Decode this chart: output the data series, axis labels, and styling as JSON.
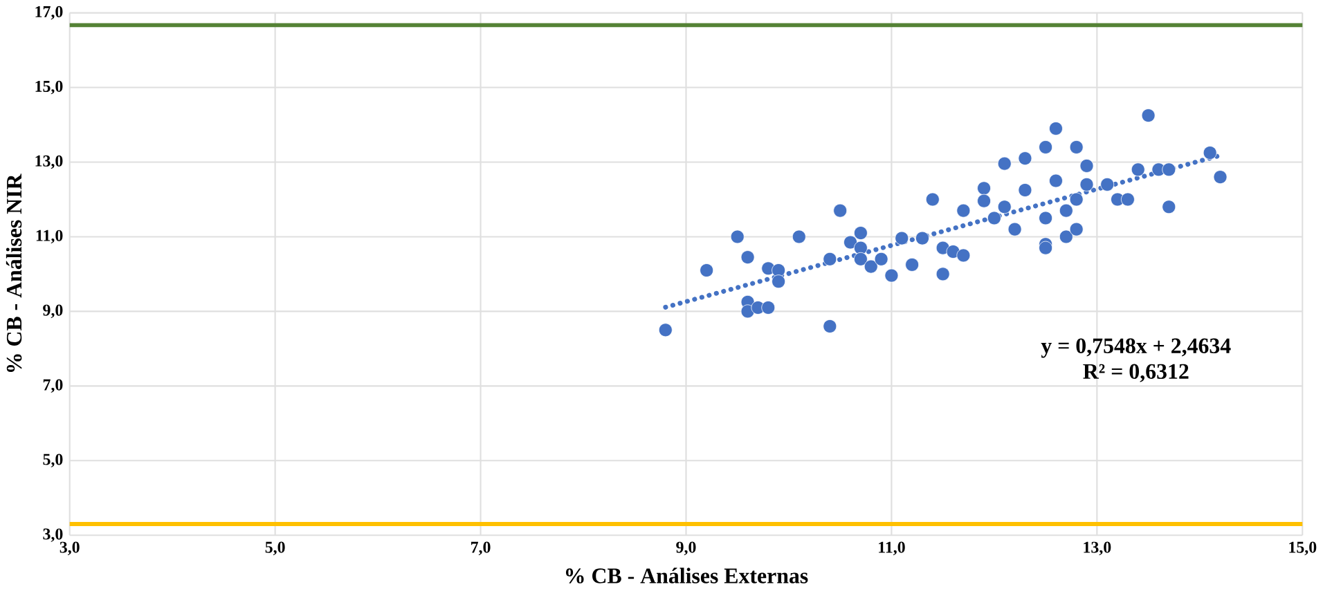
{
  "chart_data": {
    "type": "scatter",
    "xlabel": "% CB - Análises Externas",
    "ylabel": "% CB - Análises NIR",
    "xlim": [
      3,
      15
    ],
    "ylim": [
      3,
      17
    ],
    "xticks": [
      {
        "value": 3,
        "label": "3,0"
      },
      {
        "value": 5,
        "label": "5,0"
      },
      {
        "value": 7,
        "label": "7,0"
      },
      {
        "value": 9,
        "label": "9,0"
      },
      {
        "value": 11,
        "label": "11,0"
      },
      {
        "value": 13,
        "label": "13,0"
      },
      {
        "value": 15,
        "label": "15,0"
      }
    ],
    "yticks": [
      {
        "value": 3,
        "label": "3,0"
      },
      {
        "value": 5,
        "label": "5,0"
      },
      {
        "value": 7,
        "label": "7,0"
      },
      {
        "value": 9,
        "label": "9,0"
      },
      {
        "value": 11,
        "label": "11,0"
      },
      {
        "value": 13,
        "label": "13,0"
      },
      {
        "value": 15,
        "label": "15,0"
      },
      {
        "value": 17,
        "label": "17,0"
      }
    ],
    "grid": true,
    "marker": "circle",
    "series": [
      {
        "color": "#4472c4",
        "x": [
          8.8,
          9.2,
          9.5,
          9.6,
          9.6,
          9.6,
          9.7,
          9.8,
          9.8,
          9.9,
          9.9,
          10.1,
          10.4,
          10.4,
          10.5,
          10.6,
          10.7,
          10.7,
          10.7,
          10.8,
          10.9,
          11.0,
          11.1,
          11.2,
          11.3,
          11.4,
          11.5,
          11.6,
          11.5,
          11.7,
          11.7,
          11.9,
          11.9,
          12.0,
          12.1,
          12.1,
          12.2,
          12.3,
          12.3,
          12.5,
          12.5,
          12.5,
          12.5,
          12.6,
          12.6,
          12.7,
          12.7,
          12.8,
          12.8,
          12.8,
          12.9,
          12.9,
          13.1,
          13.2,
          13.3,
          13.4,
          13.5,
          13.6,
          13.7,
          13.7,
          14.1,
          14.2
        ],
        "values": [
          8.5,
          10.1,
          11.0,
          10.45,
          9.25,
          9.0,
          9.1,
          9.1,
          10.15,
          10.1,
          9.8,
          11.0,
          8.6,
          10.4,
          11.7,
          10.85,
          11.1,
          10.7,
          10.4,
          10.2,
          10.4,
          9.96,
          10.96,
          10.25,
          10.96,
          12.0,
          10.7,
          10.6,
          10.0,
          10.5,
          11.7,
          12.3,
          11.96,
          11.5,
          12.96,
          11.8,
          11.2,
          13.1,
          12.25,
          13.4,
          11.5,
          10.8,
          10.7,
          13.9,
          12.5,
          11.7,
          11.0,
          11.2,
          13.4,
          12.0,
          12.9,
          12.4,
          12.4,
          12.0,
          12.0,
          12.8,
          14.25,
          12.8,
          12.8,
          11.8,
          13.25,
          12.6
        ]
      },
      {
        "type": "line",
        "color": "#4472c4",
        "line_style": "dotted",
        "marker": "none",
        "x": [
          8.8,
          14.2
        ],
        "values": [
          9.11,
          13.18
        ]
      }
    ],
    "ref_lines": [
      {
        "axis": "y",
        "value": 16.67,
        "color": "#548235"
      },
      {
        "axis": "y",
        "value": 3.3,
        "color": "#ffc000"
      }
    ],
    "annotations": [
      "y = 0,7548x + 2,4634",
      "R² = 0,6312"
    ]
  }
}
